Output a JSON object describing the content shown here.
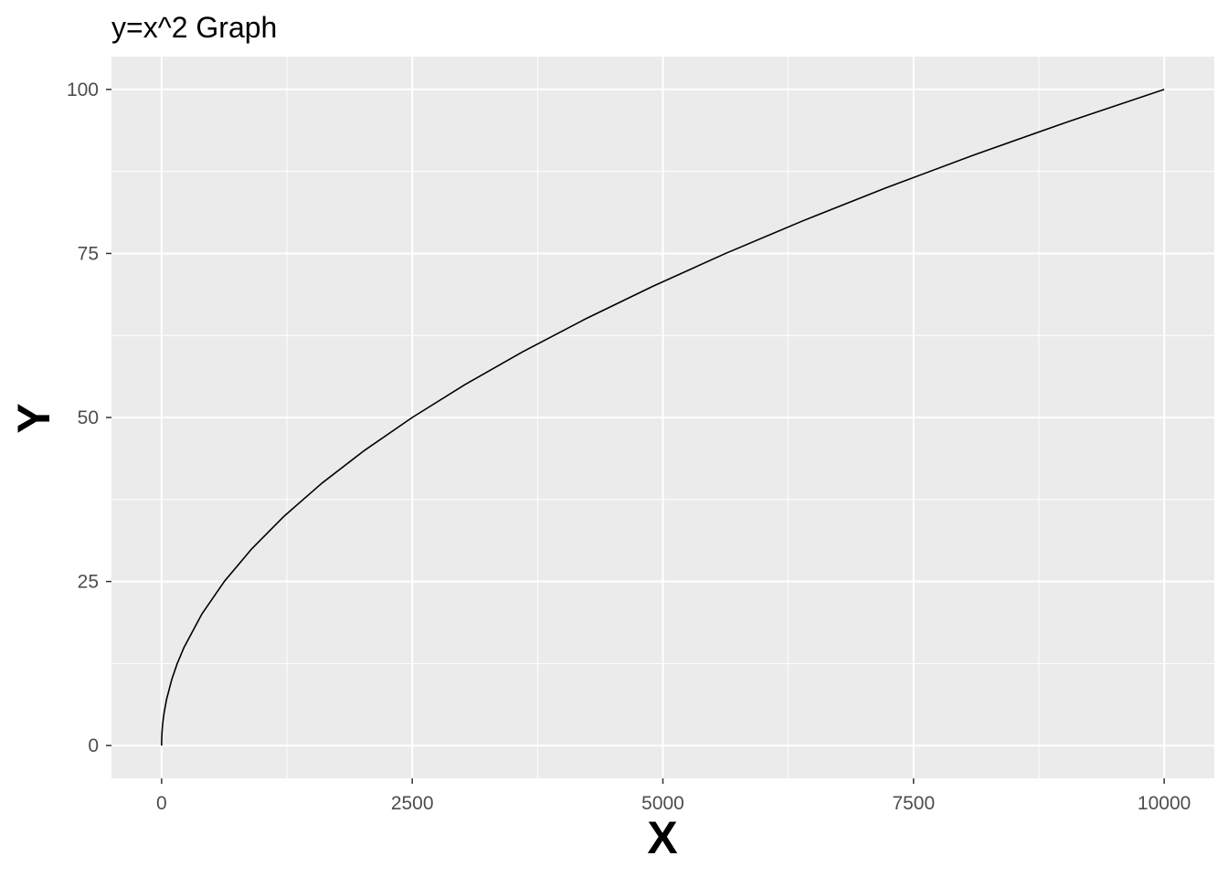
{
  "chart_data": {
    "type": "line",
    "title": "y=x^2 Graph",
    "xlabel": "X",
    "ylabel": "Y",
    "xlim": [
      -500,
      10500
    ],
    "ylim": [
      -5,
      105
    ],
    "x_ticks": [
      0,
      2500,
      5000,
      7500,
      10000
    ],
    "x_tick_labels": [
      "0",
      "2500",
      "5000",
      "7500",
      "10000"
    ],
    "y_ticks": [
      0,
      25,
      50,
      75,
      100
    ],
    "y_tick_labels": [
      "0",
      "25",
      "50",
      "75",
      "100"
    ],
    "x_minor_ticks": [
      1250,
      3750,
      6250,
      8750
    ],
    "y_minor_ticks": [
      12.5,
      37.5,
      62.5,
      87.5
    ],
    "grid": true,
    "legend": "none",
    "colors": {
      "panel_background": "#EBEBEB",
      "grid": "#FFFFFF",
      "line": "#000000",
      "tick_text": "#4D4D4D",
      "tick_mark": "#333333"
    },
    "series": [
      {
        "x": [
          0,
          1,
          4,
          9,
          16,
          25,
          49,
          100,
          156,
          225,
          400,
          625,
          900,
          1225,
          1600,
          2025,
          2500,
          3025,
          3600,
          4225,
          4900,
          5625,
          6400,
          7225,
          8100,
          9025,
          10000
        ],
        "y": [
          0,
          1,
          2,
          3,
          4,
          5,
          7,
          10,
          12.5,
          15,
          20,
          25,
          30,
          35,
          40,
          45,
          50,
          55,
          60,
          65,
          70,
          75,
          80,
          85,
          90,
          95,
          100
        ]
      }
    ]
  }
}
